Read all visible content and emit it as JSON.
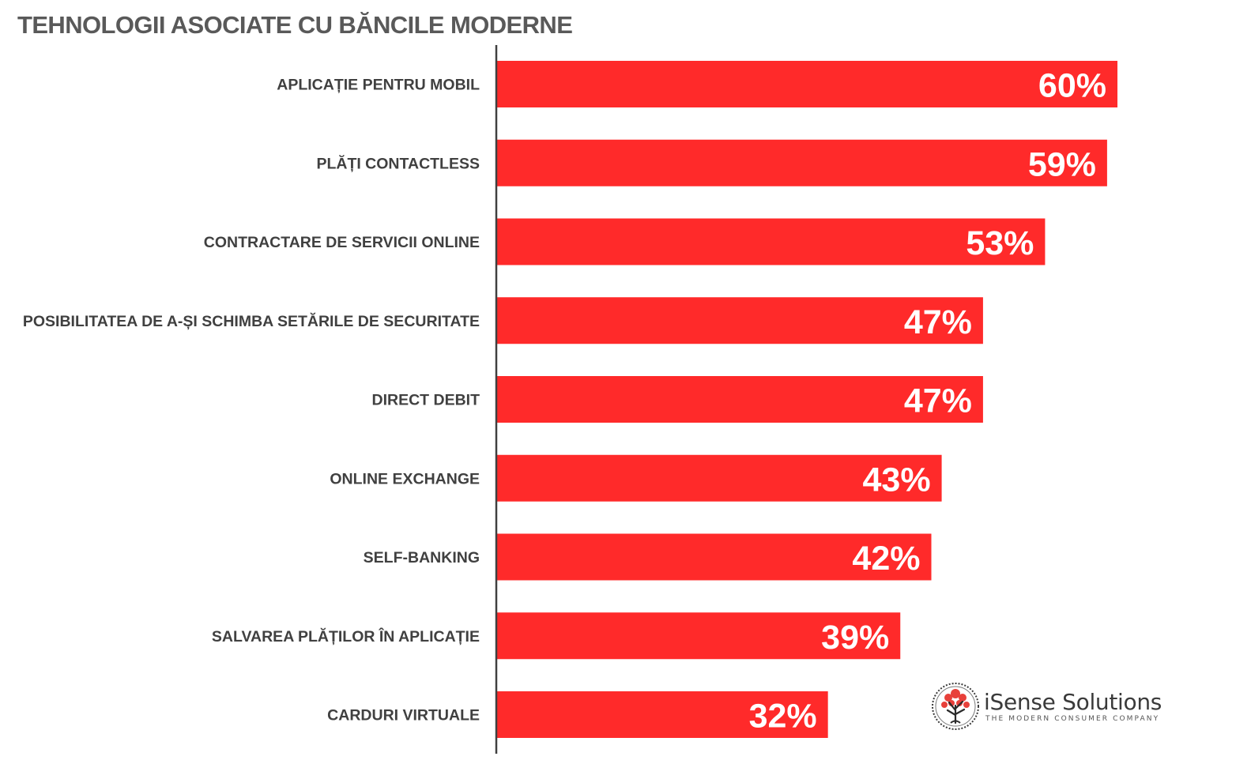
{
  "chart_data": {
    "type": "bar",
    "orientation": "horizontal",
    "title": "TEHNOLOGII ASOCIATE CU BĂNCILE MODERNE",
    "categories": [
      "APLICAȚIE PENTRU MOBIL",
      "PLĂȚI CONTACTLESS",
      "CONTRACTARE DE SERVICII ONLINE",
      "POSIBILITATEA DE A-ȘI SCHIMBA SETĂRILE DE SECURITATE",
      "DIRECT DEBIT",
      "ONLINE EXCHANGE",
      "SELF-BANKING",
      "SALVAREA PLĂȚILOR ÎN APLICAȚIE",
      "CARDURI VIRTUALE"
    ],
    "values": [
      60,
      59,
      53,
      47,
      47,
      43,
      42,
      39,
      32
    ],
    "value_labels": [
      "60%",
      "59%",
      "53%",
      "47%",
      "47%",
      "43%",
      "42%",
      "39%",
      "32%"
    ],
    "unit": "%",
    "xlim": [
      0,
      100
    ],
    "grid": false,
    "legend": "none",
    "bar_color": "#ff2a2a",
    "axis_color": "#404040"
  },
  "logo": {
    "name": "iSense Solutions",
    "tagline": "THE MODERN CONSUMER COMPANY",
    "icon": "tree-icon",
    "accent": "#e8403a"
  }
}
